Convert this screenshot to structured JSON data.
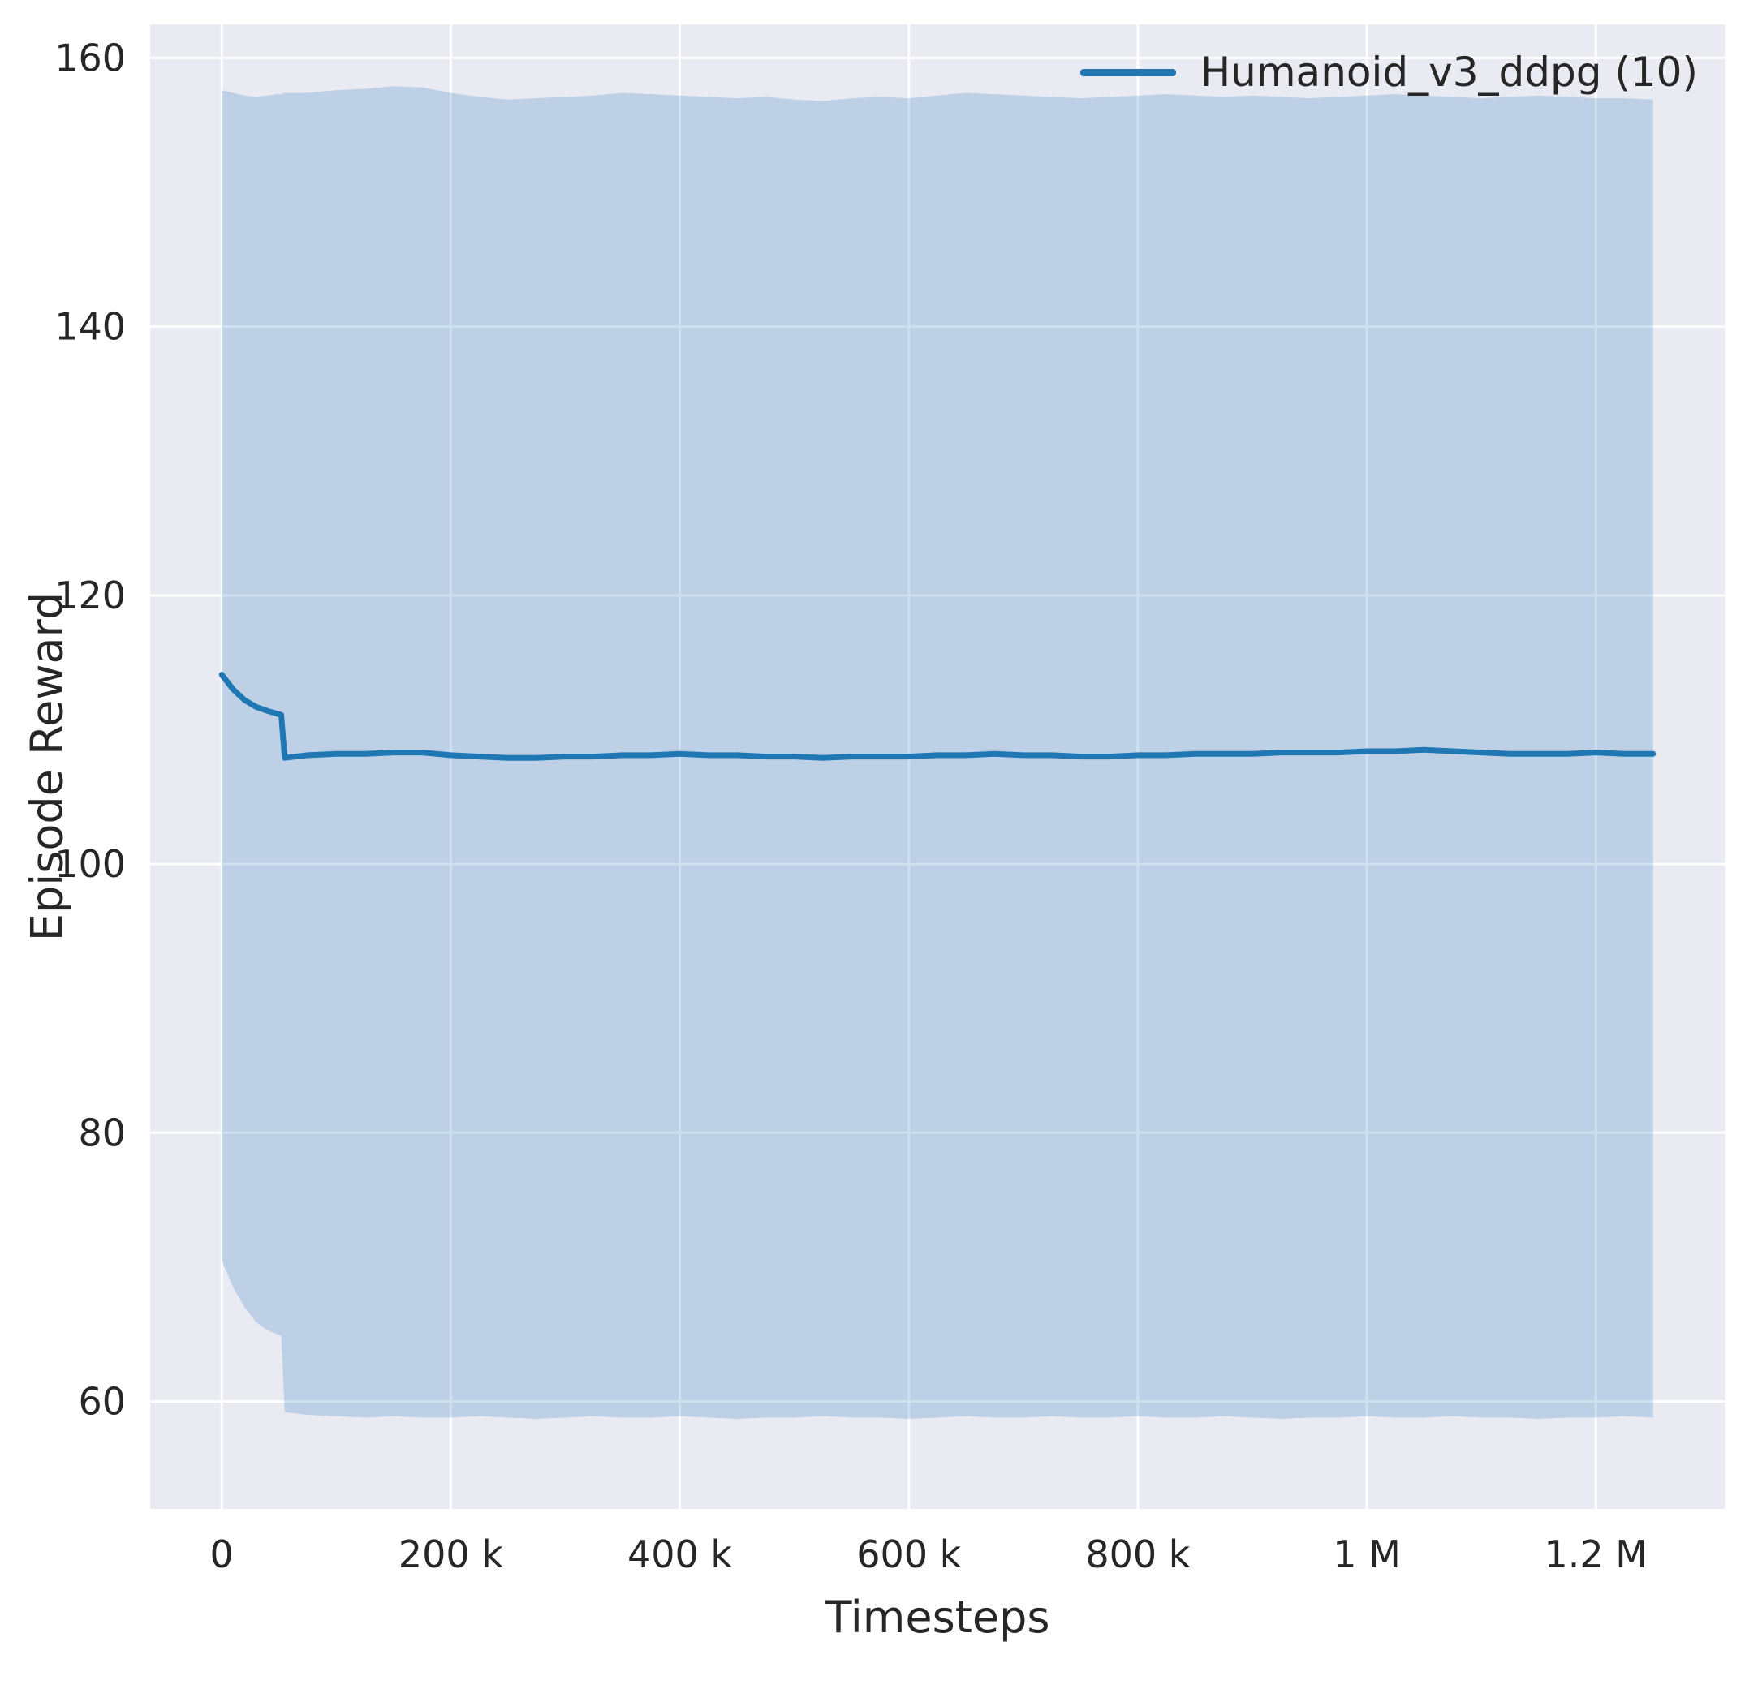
{
  "figure": {
    "background": "#ffffff",
    "axes_background": "#eaeaf2",
    "grid_color": "#ffffff",
    "text_color": "#262626"
  },
  "chart_data": {
    "type": "line",
    "title": "",
    "xlabel": "Timesteps",
    "ylabel": "Episode Reward",
    "xlim": [
      -62500,
      1312500
    ],
    "ylim": [
      52,
      162.5
    ],
    "grid": true,
    "x_ticks": [
      {
        "value": 0,
        "label": "0"
      },
      {
        "value": 200000,
        "label": "200 k"
      },
      {
        "value": 400000,
        "label": "400 k"
      },
      {
        "value": 600000,
        "label": "600 k"
      },
      {
        "value": 800000,
        "label": "800 k"
      },
      {
        "value": 1000000,
        "label": "1 M"
      },
      {
        "value": 1200000,
        "label": "1.2 M"
      }
    ],
    "y_ticks": [
      {
        "value": 60,
        "label": "60"
      },
      {
        "value": 80,
        "label": "80"
      },
      {
        "value": 100,
        "label": "100"
      },
      {
        "value": 120,
        "label": "120"
      },
      {
        "value": 140,
        "label": "140"
      },
      {
        "value": 160,
        "label": "160"
      }
    ],
    "legend": {
      "position": "upper right",
      "entries": [
        {
          "label": "Humanoid_v3_ddpg (10)",
          "color": "#1f77b4"
        }
      ]
    },
    "series": [
      {
        "name": "Humanoid_v3_ddpg (10)",
        "color": "#1f77b4",
        "band_opacity": 0.22,
        "x": [
          0,
          10000,
          20000,
          30000,
          40000,
          48000,
          52000,
          55000,
          75000,
          100000,
          125000,
          150000,
          175000,
          200000,
          225000,
          250000,
          275000,
          300000,
          325000,
          350000,
          375000,
          400000,
          425000,
          450000,
          475000,
          500000,
          525000,
          550000,
          575000,
          600000,
          625000,
          650000,
          675000,
          700000,
          725000,
          750000,
          775000,
          800000,
          825000,
          850000,
          875000,
          900000,
          925000,
          950000,
          975000,
          1000000,
          1025000,
          1050000,
          1075000,
          1100000,
          1125000,
          1150000,
          1175000,
          1200000,
          1225000,
          1250000
        ],
        "mean": [
          114.1,
          113.0,
          112.2,
          111.7,
          111.4,
          111.2,
          111.1,
          107.9,
          108.1,
          108.2,
          108.2,
          108.3,
          108.3,
          108.1,
          108.0,
          107.9,
          107.9,
          108.0,
          108.0,
          108.1,
          108.1,
          108.2,
          108.1,
          108.1,
          108.0,
          108.0,
          107.9,
          108.0,
          108.0,
          108.0,
          108.1,
          108.1,
          108.2,
          108.1,
          108.1,
          108.0,
          108.0,
          108.1,
          108.1,
          108.2,
          108.2,
          108.2,
          108.3,
          108.3,
          108.3,
          108.4,
          108.4,
          108.5,
          108.4,
          108.3,
          108.2,
          108.2,
          108.2,
          108.3,
          108.2,
          108.2
        ],
        "band_upper": [
          157.6,
          157.4,
          157.2,
          157.1,
          157.2,
          157.3,
          157.3,
          157.4,
          157.4,
          157.6,
          157.7,
          157.9,
          157.8,
          157.4,
          157.1,
          156.9,
          157.0,
          157.1,
          157.2,
          157.4,
          157.3,
          157.2,
          157.1,
          157.0,
          157.1,
          156.9,
          156.8,
          157.0,
          157.1,
          157.0,
          157.2,
          157.4,
          157.3,
          157.2,
          157.1,
          157.0,
          157.1,
          157.2,
          157.3,
          157.2,
          157.1,
          157.2,
          157.1,
          157.0,
          157.1,
          157.2,
          157.3,
          157.2,
          157.1,
          157.0,
          157.1,
          157.2,
          157.1,
          157.0,
          157.0,
          156.9
        ],
        "band_lower": [
          70.5,
          68.5,
          67.0,
          65.9,
          65.3,
          65.0,
          64.9,
          59.2,
          59.0,
          58.9,
          58.8,
          58.9,
          58.8,
          58.8,
          58.9,
          58.8,
          58.7,
          58.8,
          58.9,
          58.8,
          58.8,
          58.9,
          58.8,
          58.7,
          58.8,
          58.8,
          58.9,
          58.8,
          58.8,
          58.7,
          58.8,
          58.9,
          58.8,
          58.8,
          58.9,
          58.8,
          58.8,
          58.9,
          58.8,
          58.8,
          58.9,
          58.8,
          58.7,
          58.8,
          58.8,
          58.9,
          58.8,
          58.8,
          58.9,
          58.8,
          58.8,
          58.7,
          58.8,
          58.8,
          58.9,
          58.8
        ]
      }
    ]
  }
}
